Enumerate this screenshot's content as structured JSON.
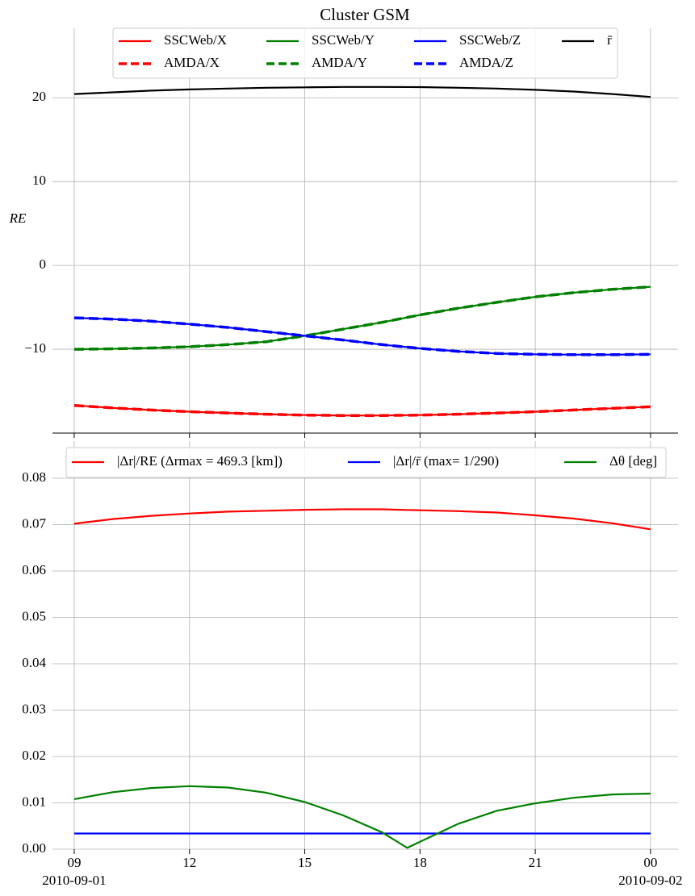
{
  "chart_data": [
    {
      "type": "line",
      "title": "Cluster GSM",
      "ylabel": "RE",
      "x": [
        "2010-09-01T09:00",
        "2010-09-01T10:00",
        "2010-09-01T11:00",
        "2010-09-01T12:00",
        "2010-09-01T13:00",
        "2010-09-01T14:00",
        "2010-09-01T15:00",
        "2010-09-01T16:00",
        "2010-09-01T17:00",
        "2010-09-01T18:00",
        "2010-09-01T19:00",
        "2010-09-01T20:00",
        "2010-09-01T21:00",
        "2010-09-01T22:00",
        "2010-09-01T23:00",
        "2010-09-02T00:00"
      ],
      "xlim": [
        "2010-09-01T08:26",
        "2010-09-02T00:43"
      ],
      "xticks": [
        "2010-09-01T09:00",
        "2010-09-01T12:00",
        "2010-09-01T15:00",
        "2010-09-01T18:00",
        "2010-09-01T21:00",
        "2010-09-02T00:00"
      ],
      "ylim": [
        -20,
        28.3
      ],
      "yticks": [
        {
          "value": -10,
          "label": "−10"
        },
        0,
        10,
        20
      ],
      "grid": true,
      "legend_loc": "upper center",
      "legend_ncol": 4,
      "series": [
        {
          "name": "SSCWeb/X",
          "color": "#ff0000",
          "linestyle": "solid",
          "values": [
            -16.7,
            -17.0,
            -17.25,
            -17.45,
            -17.6,
            -17.75,
            -17.85,
            -17.9,
            -17.9,
            -17.85,
            -17.75,
            -17.6,
            -17.45,
            -17.25,
            -17.05,
            -16.85
          ]
        },
        {
          "name": "AMDA/X",
          "color": "#ff0000",
          "linestyle": "dashed",
          "values": [
            -16.7,
            -17.0,
            -17.25,
            -17.45,
            -17.6,
            -17.75,
            -17.85,
            -17.9,
            -17.9,
            -17.85,
            -17.75,
            -17.6,
            -17.45,
            -17.25,
            -17.05,
            -16.85
          ]
        },
        {
          "name": "SSCWeb/Y",
          "color": "#008000",
          "linestyle": "solid",
          "values": [
            -10.0,
            -9.95,
            -9.85,
            -9.7,
            -9.45,
            -9.1,
            -8.4,
            -7.6,
            -6.8,
            -5.9,
            -5.1,
            -4.4,
            -3.75,
            -3.25,
            -2.85,
            -2.55
          ]
        },
        {
          "name": "AMDA/Y",
          "color": "#008000",
          "linestyle": "dashed",
          "values": [
            -10.0,
            -9.95,
            -9.85,
            -9.7,
            -9.45,
            -9.1,
            -8.4,
            -7.6,
            -6.8,
            -5.9,
            -5.1,
            -4.4,
            -3.75,
            -3.25,
            -2.85,
            -2.55
          ]
        },
        {
          "name": "SSCWeb/Z",
          "color": "#0000ff",
          "linestyle": "solid",
          "values": [
            -6.25,
            -6.4,
            -6.65,
            -7.0,
            -7.4,
            -7.9,
            -8.4,
            -8.9,
            -9.45,
            -9.9,
            -10.25,
            -10.5,
            -10.6,
            -10.65,
            -10.65,
            -10.6
          ]
        },
        {
          "name": "AMDA/Z",
          "color": "#0000ff",
          "linestyle": "dashed",
          "values": [
            -6.25,
            -6.4,
            -6.65,
            -7.0,
            -7.4,
            -7.9,
            -8.4,
            -8.9,
            -9.45,
            -9.9,
            -10.25,
            -10.5,
            -10.6,
            -10.65,
            -10.65,
            -10.6
          ]
        },
        {
          "name": "r̄",
          "color": "#000000",
          "linestyle": "solid",
          "values": [
            20.45,
            20.65,
            20.85,
            21.0,
            21.1,
            21.2,
            21.25,
            21.3,
            21.3,
            21.28,
            21.2,
            21.1,
            20.95,
            20.75,
            20.45,
            20.1
          ]
        }
      ]
    },
    {
      "type": "line",
      "x": [
        "2010-09-01T09:00",
        "2010-09-01T10:00",
        "2010-09-01T11:00",
        "2010-09-01T12:00",
        "2010-09-01T13:00",
        "2010-09-01T14:00",
        "2010-09-01T15:00",
        "2010-09-01T16:00",
        "2010-09-01T17:00",
        "2010-09-01T18:00",
        "2010-09-01T19:00",
        "2010-09-01T20:00",
        "2010-09-01T21:00",
        "2010-09-01T22:00",
        "2010-09-01T23:00",
        "2010-09-02T00:00"
      ],
      "xlim": [
        "2010-09-01T08:26",
        "2010-09-02T00:43"
      ],
      "xticks": [
        {
          "value": "2010-09-01T09:00",
          "label": "09"
        },
        {
          "value": "2010-09-01T12:00",
          "label": "12"
        },
        {
          "value": "2010-09-01T15:00",
          "label": "15"
        },
        {
          "value": "2010-09-01T18:00",
          "label": "18"
        },
        {
          "value": "2010-09-01T21:00",
          "label": "21"
        },
        {
          "value": "2010-09-02T00:00",
          "label": "00"
        }
      ],
      "xdates": [
        {
          "value": "2010-09-01T09:00",
          "label": "2010-09-01"
        },
        {
          "value": "2010-09-02T00:00",
          "label": "2010-09-02"
        }
      ],
      "ylim": [
        0,
        0.088
      ],
      "yticks": [
        {
          "value": 0,
          "label": "0.00"
        },
        {
          "value": 0.01,
          "label": "0.01"
        },
        {
          "value": 0.02,
          "label": "0.02"
        },
        {
          "value": 0.03,
          "label": "0.03"
        },
        {
          "value": 0.04,
          "label": "0.04"
        },
        {
          "value": 0.05,
          "label": "0.05"
        },
        {
          "value": 0.06,
          "label": "0.06"
        },
        {
          "value": 0.07,
          "label": "0.07"
        },
        {
          "value": 0.08,
          "label": "0.08"
        }
      ],
      "grid": true,
      "legend_loc": "upper center",
      "legend_ncol": 3,
      "series": [
        {
          "name": "|Δr|/RE (Δrmax = 469.3 [km])",
          "color": "#ff0000",
          "linestyle": "solid",
          "values": [
            0.0702,
            0.0712,
            0.0719,
            0.0724,
            0.0728,
            0.073,
            0.0732,
            0.0733,
            0.0733,
            0.0731,
            0.0729,
            0.0726,
            0.072,
            0.0713,
            0.0703,
            0.069
          ]
        },
        {
          "name": "|Δr|/r̄  (max= 1/290)",
          "color": "#0000ff",
          "linestyle": "solid",
          "values": [
            0.0034,
            0.0034,
            0.0034,
            0.0034,
            0.0034,
            0.0034,
            0.0034,
            0.0034,
            0.0034,
            0.0034,
            0.0034,
            0.0034,
            0.0034,
            0.0034,
            0.0034,
            0.0034
          ]
        },
        {
          "name": "Δθ [deg]",
          "color": "#008000",
          "linestyle": "solid",
          "x": [
            "2010-09-01T09:00",
            "2010-09-01T10:00",
            "2010-09-01T11:00",
            "2010-09-01T12:00",
            "2010-09-01T13:00",
            "2010-09-01T14:00",
            "2010-09-01T15:00",
            "2010-09-01T16:00",
            "2010-09-01T17:00",
            "2010-09-01T17:40",
            "2010-09-01T18:00",
            "2010-09-01T19:00",
            "2010-09-01T20:00",
            "2010-09-01T21:00",
            "2010-09-01T22:00",
            "2010-09-01T23:00",
            "2010-09-02T00:00"
          ],
          "values": [
            0.0108,
            0.0123,
            0.0132,
            0.0136,
            0.0133,
            0.0122,
            0.0102,
            0.0073,
            0.0037,
            0.0003,
            0.0016,
            0.0055,
            0.0083,
            0.0099,
            0.0111,
            0.0118,
            0.012
          ]
        }
      ]
    }
  ]
}
